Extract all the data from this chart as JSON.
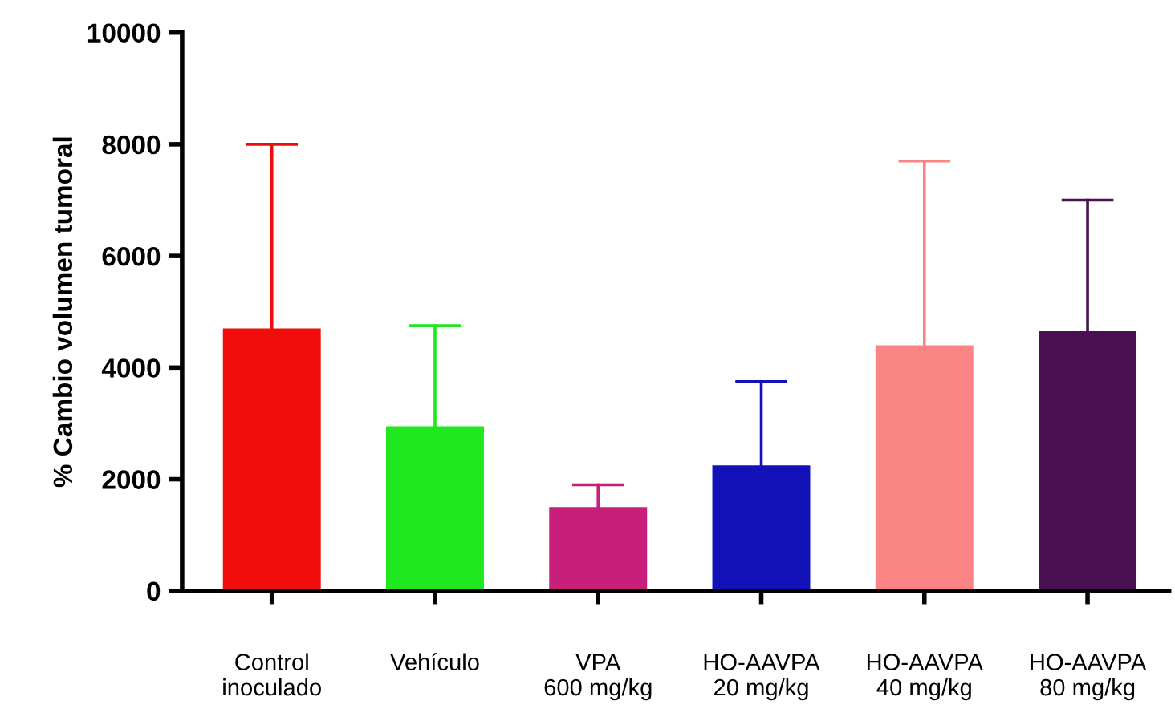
{
  "chart_data": {
    "type": "bar",
    "ylabel": "% Cambio volumen tumoral",
    "categories": [
      "Control\ninoculado",
      "Vehículo",
      "VPA\n600 mg/kg",
      "HO-AAVPA\n20 mg/kg",
      "HO-AAVPA\n40 mg/kg",
      "HO-AAVPA\n80 mg/kg"
    ],
    "values": [
      4700,
      2950,
      1500,
      2250,
      4400,
      4650
    ],
    "errors": [
      [
        4700,
        8000
      ],
      [
        2950,
        4750
      ],
      [
        1500,
        1900
      ],
      [
        2250,
        3750
      ],
      [
        4400,
        7700
      ],
      [
        4650,
        7000
      ]
    ],
    "colors": [
      "#f20d0d",
      "#1fe81f",
      "#c8207a",
      "#1212b8",
      "#fb8585",
      "#4a1052"
    ],
    "ylim": [
      0,
      10000
    ],
    "yticks": [
      0,
      2000,
      4000,
      6000,
      8000,
      10000
    ],
    "grid": false
  }
}
